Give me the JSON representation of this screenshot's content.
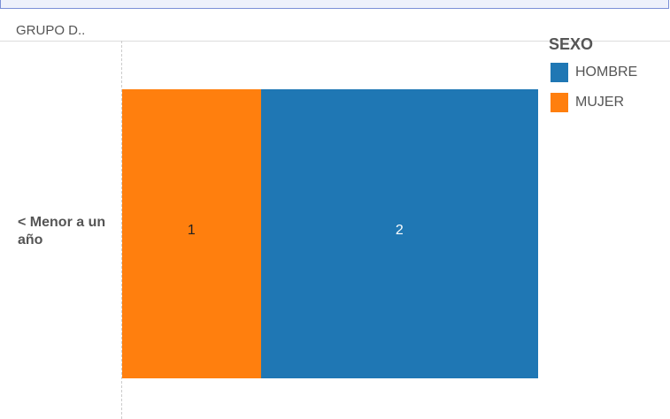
{
  "chart_data": {
    "type": "stacked-bar",
    "orientation": "horizontal",
    "row_header": "GRUPO D..",
    "categories": [
      "< Menor a un año"
    ],
    "legend_title": "SEXO",
    "series": [
      {
        "name": "HOMBRE",
        "color": "#1f77b4",
        "values": [
          2
        ]
      },
      {
        "name": "MUJER",
        "color": "#ff7f0e",
        "values": [
          1
        ]
      }
    ],
    "xlim": [
      0,
      3
    ]
  }
}
